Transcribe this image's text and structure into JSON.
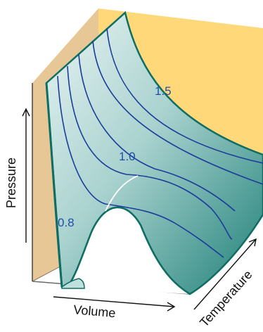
{
  "axes": {
    "x_label": "Volume",
    "y_label": "Pressure",
    "z_label": "Temperature"
  },
  "isotherm_labels": [
    "1.5",
    "1.0",
    "0.8"
  ],
  "colors": {
    "back_wall": "#FFD87A",
    "side_wall": "#E8C796",
    "surface_light": "#E6F3F2",
    "surface_dark": "#1F8078",
    "isotherm_line": "#1A3D9A",
    "edge": "#0F6E63",
    "label_text": "#1F4FA8",
    "critical_curve": "#FFFFFF"
  }
}
